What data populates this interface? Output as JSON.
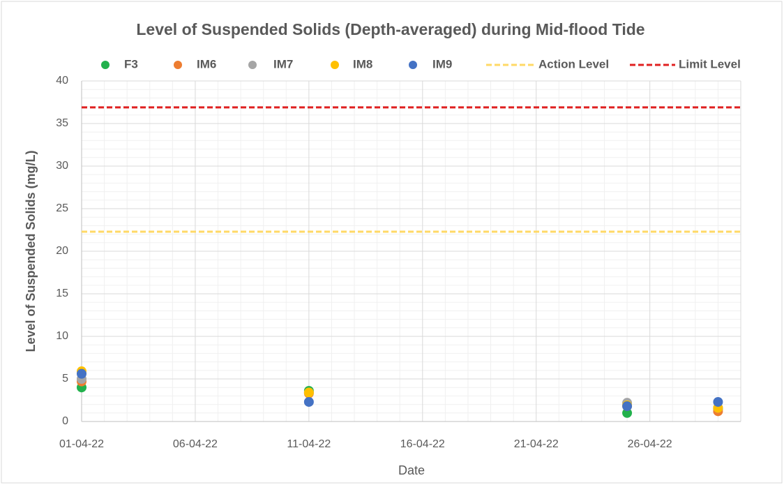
{
  "chart_data": {
    "type": "scatter",
    "title": "Level of Suspended Solids (Depth-averaged) during Mid-flood Tide",
    "x_label": "Date",
    "y_label": "Level of Suspended Solids (mg/L)",
    "x": [
      "01-04-22",
      "11-04-22",
      "25-04-22",
      "29-04-22"
    ],
    "series": [
      {
        "name": "F3",
        "color": "#22b14c",
        "values": [
          4.0,
          3.6,
          1.0,
          1.5
        ]
      },
      {
        "name": "IM6",
        "color": "#ed7d31",
        "values": [
          4.7,
          3.3,
          1.8,
          1.2
        ]
      },
      {
        "name": "IM7",
        "color": "#a5a5a5",
        "values": [
          5.0,
          3.4,
          2.2,
          1.6
        ]
      },
      {
        "name": "IM8",
        "color": "#ffc000",
        "values": [
          5.9,
          3.4,
          1.9,
          1.6
        ]
      },
      {
        "name": "IM9",
        "color": "#4472c4",
        "values": [
          5.6,
          2.3,
          1.8,
          2.3
        ]
      }
    ],
    "reference_lines": [
      {
        "name": "Action Level",
        "value": 22.3,
        "color": "#ffd966"
      },
      {
        "name": "Limit Level",
        "value": 36.9,
        "color": "#e02020"
      }
    ],
    "xlim": [
      "01-04-22",
      "30-04-22"
    ],
    "xticks": [
      "01-04-22",
      "06-04-22",
      "11-04-22",
      "16-04-22",
      "21-04-22",
      "26-04-22"
    ],
    "ylim": [
      0,
      40
    ],
    "yticks": [
      0,
      5,
      10,
      15,
      20,
      25,
      30,
      35,
      40
    ],
    "grid": true,
    "minor_grid": true,
    "legend": "top"
  }
}
